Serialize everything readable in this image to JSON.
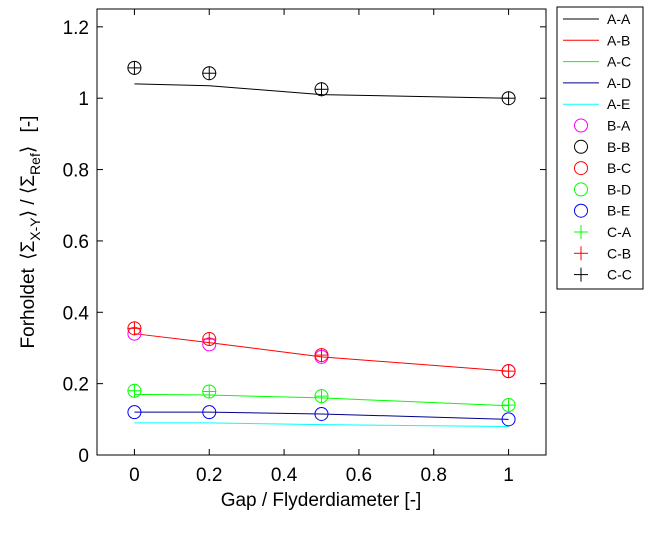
{
  "chart_data": {
    "type": "line",
    "x": [
      0,
      0.2,
      0.5,
      1
    ],
    "xlabel": "Gap / Flyderdiameter [-]",
    "ylabel": {
      "prefix": "Forholdet",
      "num_sub": "X-Y",
      "den_sub": "Ref",
      "suffix": "[-]"
    },
    "xlim": [
      -0.1,
      1.1
    ],
    "ylim": [
      0,
      1.25
    ],
    "xticks": [
      "0",
      "0.2",
      "0.4",
      "0.6",
      "0.8",
      "1"
    ],
    "yticks": [
      "0",
      "0.2",
      "0.4",
      "0.6",
      "0.8",
      "1",
      "1.2"
    ],
    "grid": false,
    "legend_position": "outside-right-top",
    "series": [
      {
        "name": "A-A",
        "style": "line",
        "color": "#000000",
        "values": [
          1.04,
          1.035,
          1.01,
          1.0
        ]
      },
      {
        "name": "A-B",
        "style": "line",
        "color": "#ff0000",
        "values": [
          0.34,
          0.315,
          0.275,
          0.235
        ]
      },
      {
        "name": "A-C",
        "style": "line",
        "color": "#00ff00",
        "values": [
          0.17,
          0.168,
          0.16,
          0.138
        ]
      },
      {
        "name": "A-D",
        "style": "line",
        "color": "#00008b",
        "values": [
          0.12,
          0.12,
          0.115,
          0.1
        ]
      },
      {
        "name": "A-E",
        "style": "line",
        "color": "#00ffff",
        "values": [
          0.09,
          0.09,
          0.085,
          0.08
        ]
      },
      {
        "name": "B-A",
        "style": "circle",
        "color": "#ff00ff",
        "values": [
          0.34,
          0.31,
          0.275,
          0.235
        ]
      },
      {
        "name": "B-B",
        "style": "circle",
        "color": "#000000",
        "values": [
          1.085,
          1.07,
          1.025,
          1.0
        ]
      },
      {
        "name": "B-C",
        "style": "circle",
        "color": "#ff0000",
        "values": [
          0.355,
          0.325,
          0.28,
          0.235
        ]
      },
      {
        "name": "B-D",
        "style": "circle",
        "color": "#00ff00",
        "values": [
          0.18,
          0.178,
          0.165,
          0.14
        ]
      },
      {
        "name": "B-E",
        "style": "circle",
        "color": "#0000ff",
        "values": [
          0.12,
          0.12,
          0.115,
          0.1
        ]
      },
      {
        "name": "C-A",
        "style": "plus",
        "color": "#00ff00",
        "values": [
          0.18,
          0.178,
          0.165,
          0.14
        ]
      },
      {
        "name": "C-B",
        "style": "plus",
        "color": "#ff0000",
        "values": [
          0.355,
          0.325,
          0.28,
          0.235
        ]
      },
      {
        "name": "C-C",
        "style": "plus",
        "color": "#000000",
        "values": [
          1.085,
          1.07,
          1.025,
          1.0
        ]
      }
    ]
  }
}
